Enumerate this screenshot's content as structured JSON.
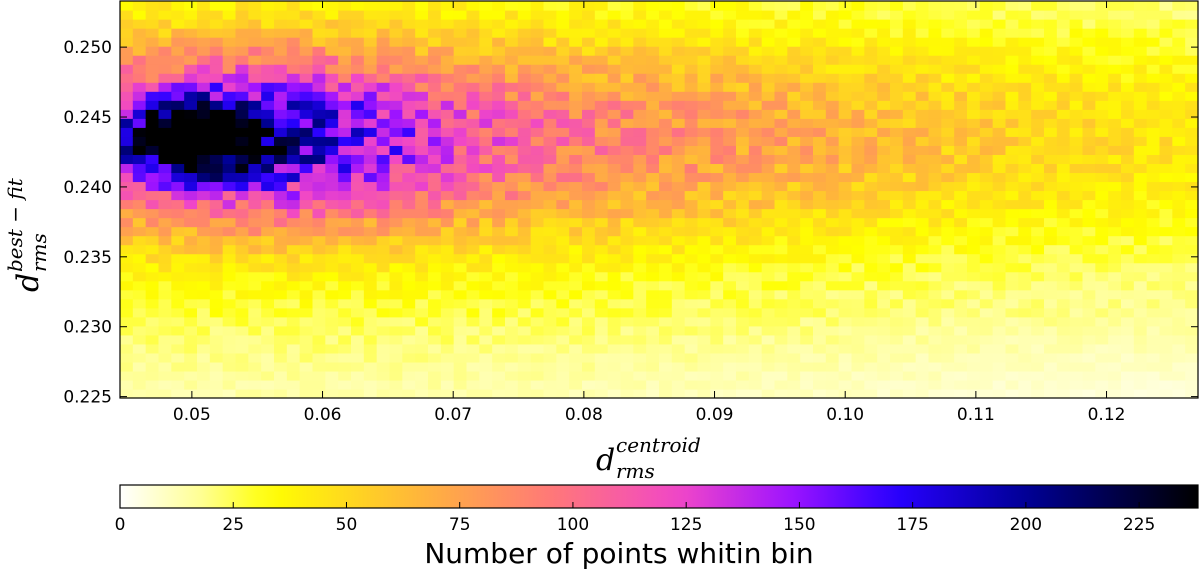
{
  "chart_data": {
    "type": "heatmap",
    "title": "",
    "xlabel": {
      "main": "d",
      "superscript": "centroid",
      "subscript": "rms"
    },
    "ylabel": {
      "main": "d",
      "superscript": "best − fit",
      "subscript": "rms"
    },
    "xlim": [
      0.0445,
      0.127
    ],
    "ylim": [
      0.2249,
      0.2533
    ],
    "xticks": [
      0.05,
      0.06,
      0.07,
      0.08,
      0.09,
      0.1,
      0.11,
      0.12
    ],
    "xtick_labels": [
      "0.05",
      "0.06",
      "0.07",
      "0.08",
      "0.09",
      "0.10",
      "0.11",
      "0.12"
    ],
    "yticks": [
      0.225,
      0.23,
      0.235,
      0.24,
      0.245,
      0.25
    ],
    "ytick_labels": [
      "0.225",
      "0.230",
      "0.235",
      "0.240",
      "0.245",
      "0.250"
    ],
    "bins": {
      "nx": 84,
      "ny": 44
    },
    "density_model": {
      "description": "2D histogram: dense core near x=0.050, y=0.2435 (peak ~235 counts), ridge extending right along y~0.243-0.244, decreasing toward high x and low y",
      "peak_x": 0.0502,
      "peak_y": 0.2435,
      "peak_count": 235,
      "ridge_y": 0.2435
    },
    "colorbar": {
      "label": "Number of points whitin bin",
      "min": 0,
      "max": 238,
      "ticks": [
        0,
        25,
        50,
        75,
        100,
        125,
        150,
        175,
        200,
        225
      ],
      "tick_labels": [
        "0",
        "25",
        "50",
        "75",
        "100",
        "125",
        "150",
        "175",
        "200",
        "225"
      ],
      "colormap": "gnuplot2_r",
      "orientation": "horizontal",
      "placement": "bottom"
    }
  }
}
